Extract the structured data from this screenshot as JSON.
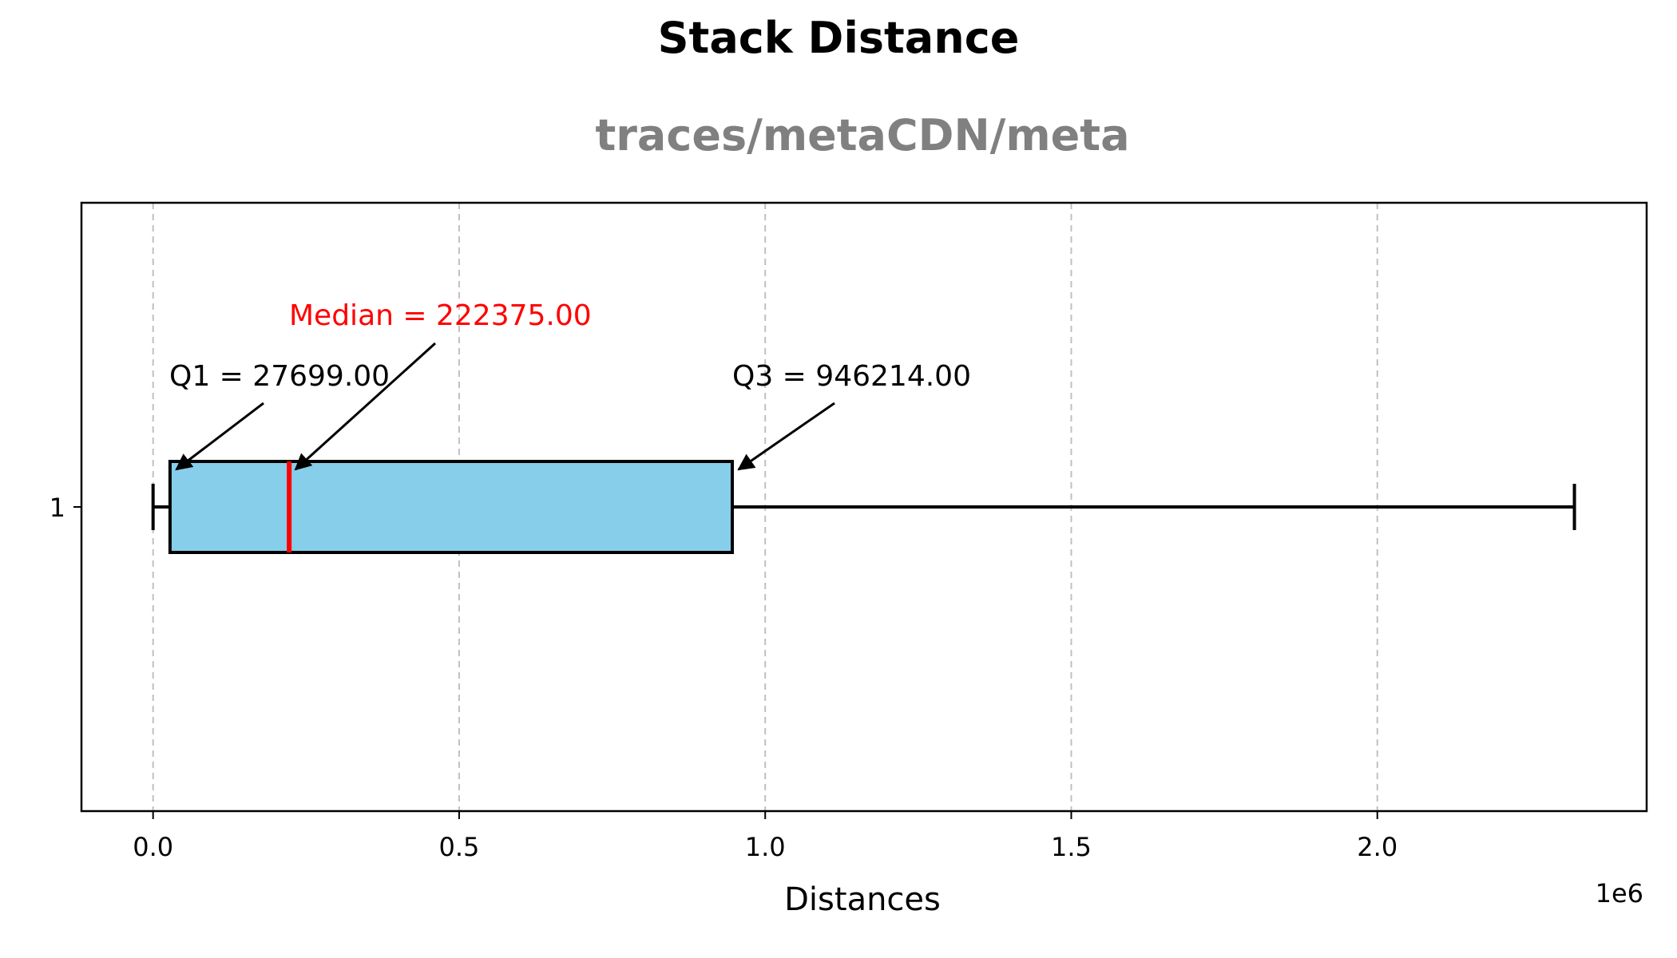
{
  "chart_data": {
    "type": "boxplot",
    "orientation": "horizontal",
    "title": "Stack Distance",
    "subtitle": "traces/metaCDN/meta",
    "xlabel": "Distances",
    "x_scale_label": "1e6",
    "xlim": [
      -0.117,
      2.44
    ],
    "x_ticks": [
      0.0,
      0.5,
      1.0,
      1.5,
      2.0
    ],
    "x_tick_labels": [
      "0.0",
      "0.5",
      "1.0",
      "1.5",
      "2.0"
    ],
    "y_ticks": [
      1
    ],
    "y_tick_labels": [
      "1"
    ],
    "grid": "x, dashed",
    "series": [
      {
        "min": 0,
        "q1": 27699.0,
        "median": 222375.0,
        "q3": 946214.0,
        "max": 2322000
      }
    ],
    "annotations": {
      "q1": "Q1 = 27699.00",
      "median": "Median = 222375.00",
      "q3": "Q3 = 946214.00"
    },
    "colors": {
      "box_fill": "#87CEEB",
      "median_line": "#FF0000",
      "median_text": "#FF0000",
      "grid": "#C0C0C0"
    }
  }
}
